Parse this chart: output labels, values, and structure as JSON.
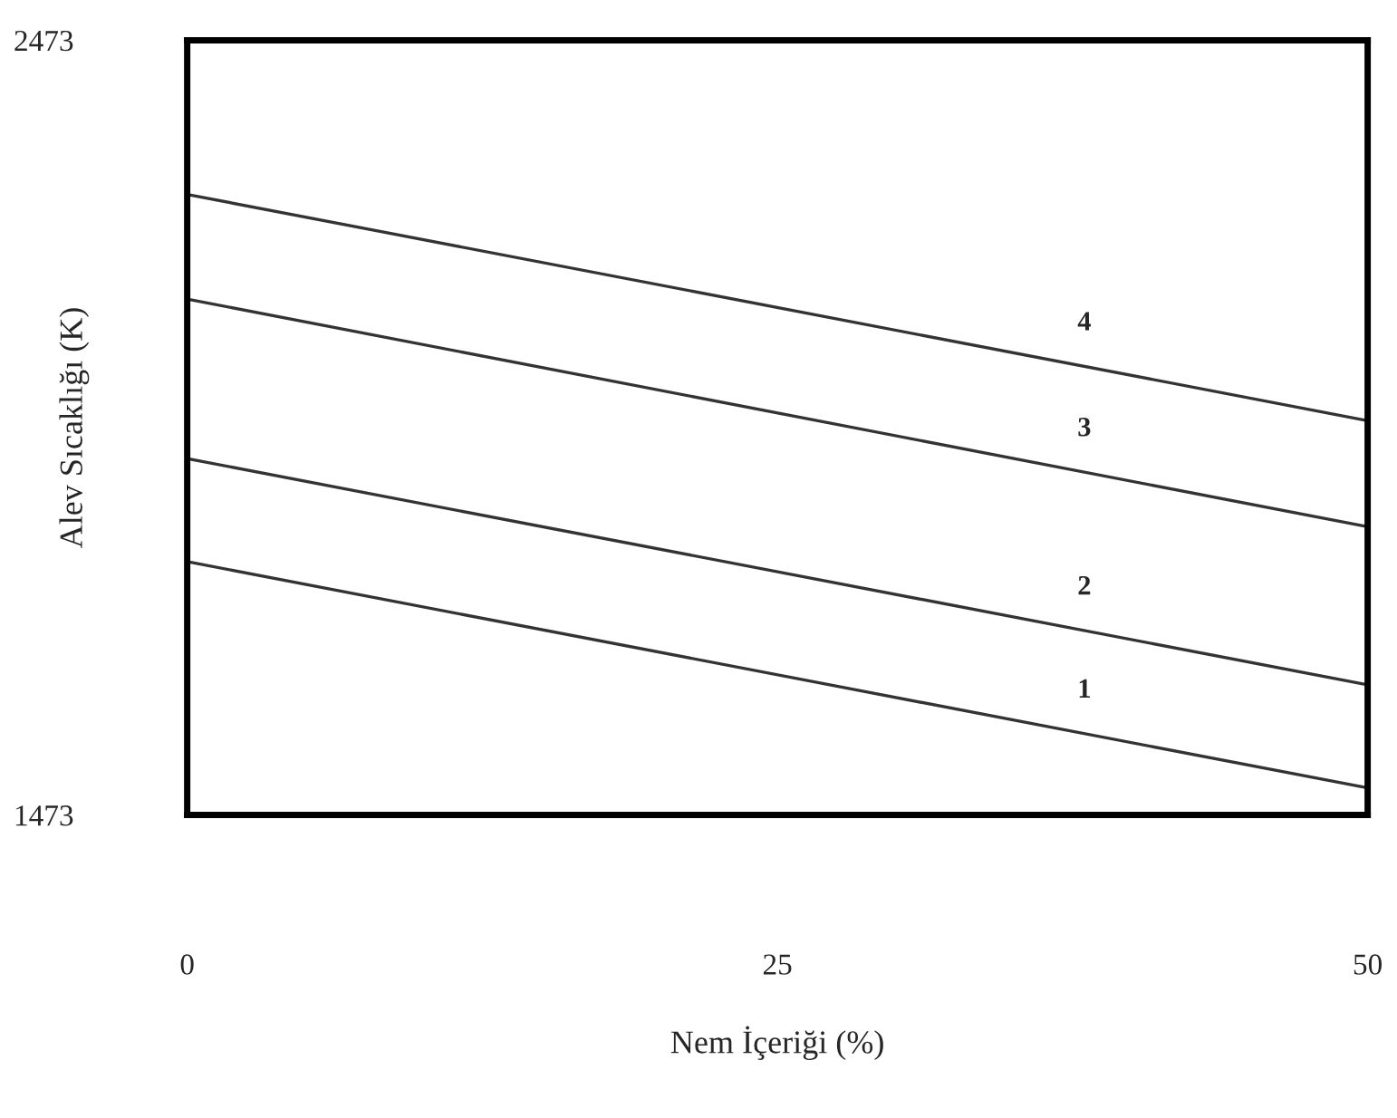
{
  "chart_data": {
    "type": "line",
    "xlabel": "Nem İçeriği (%)",
    "ylabel": "Alev Sıcaklığı (K)",
    "x": [
      0,
      50
    ],
    "series": [
      {
        "name": "1",
        "color": "#333333",
        "values": [
          1800,
          1508
        ]
      },
      {
        "name": "2",
        "color": "#333333",
        "values": [
          1933,
          1641
        ]
      },
      {
        "name": "3",
        "color": "#333333",
        "values": [
          2139,
          1845
        ]
      },
      {
        "name": "4",
        "color": "#333333",
        "values": [
          2274,
          1982
        ]
      }
    ],
    "xlim": [
      0,
      50
    ],
    "ylim": [
      1473,
      2473
    ],
    "xticks": [
      0,
      25,
      50
    ],
    "yticks": [
      1473,
      2473
    ],
    "grid": false,
    "legend": false,
    "marker": "none",
    "line_style": "solid"
  }
}
